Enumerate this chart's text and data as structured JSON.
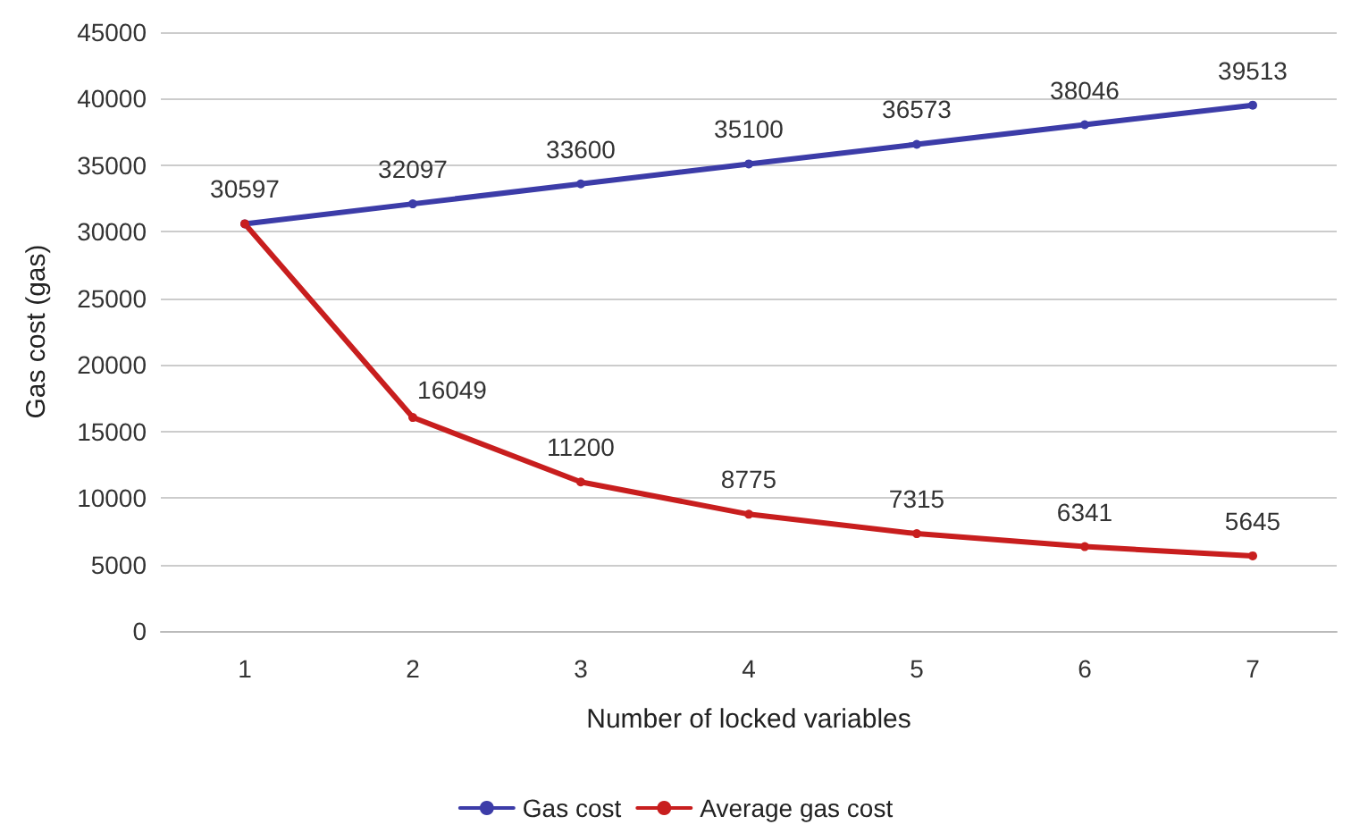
{
  "chart_data": {
    "type": "line",
    "xlabel": "Number of locked variables",
    "ylabel": "Gas cost (gas)",
    "categories": [
      "1",
      "2",
      "3",
      "4",
      "5",
      "6",
      "7"
    ],
    "series": [
      {
        "name": "Gas cost",
        "color": "#3c3ca8",
        "values": [
          30597,
          32097,
          33600,
          35100,
          36573,
          38046,
          39513
        ],
        "value_labels": [
          "30597",
          "32097",
          "33600",
          "35100",
          "36573",
          "38046",
          "39513"
        ]
      },
      {
        "name": "Average gas cost",
        "color": "#c81e1e",
        "values": [
          30597,
          16049,
          11200,
          8775,
          7315,
          6341,
          5645
        ],
        "value_labels": [
          null,
          "16049",
          "11200",
          "8775",
          "7315",
          "6341",
          "5645"
        ]
      }
    ],
    "ylim": [
      0,
      45000
    ],
    "yticks": [
      0,
      5000,
      10000,
      15000,
      20000,
      25000,
      30000,
      35000,
      40000,
      45000
    ],
    "grid": "y",
    "legend": "bottom",
    "marker": "circle",
    "line_style": "solid"
  }
}
